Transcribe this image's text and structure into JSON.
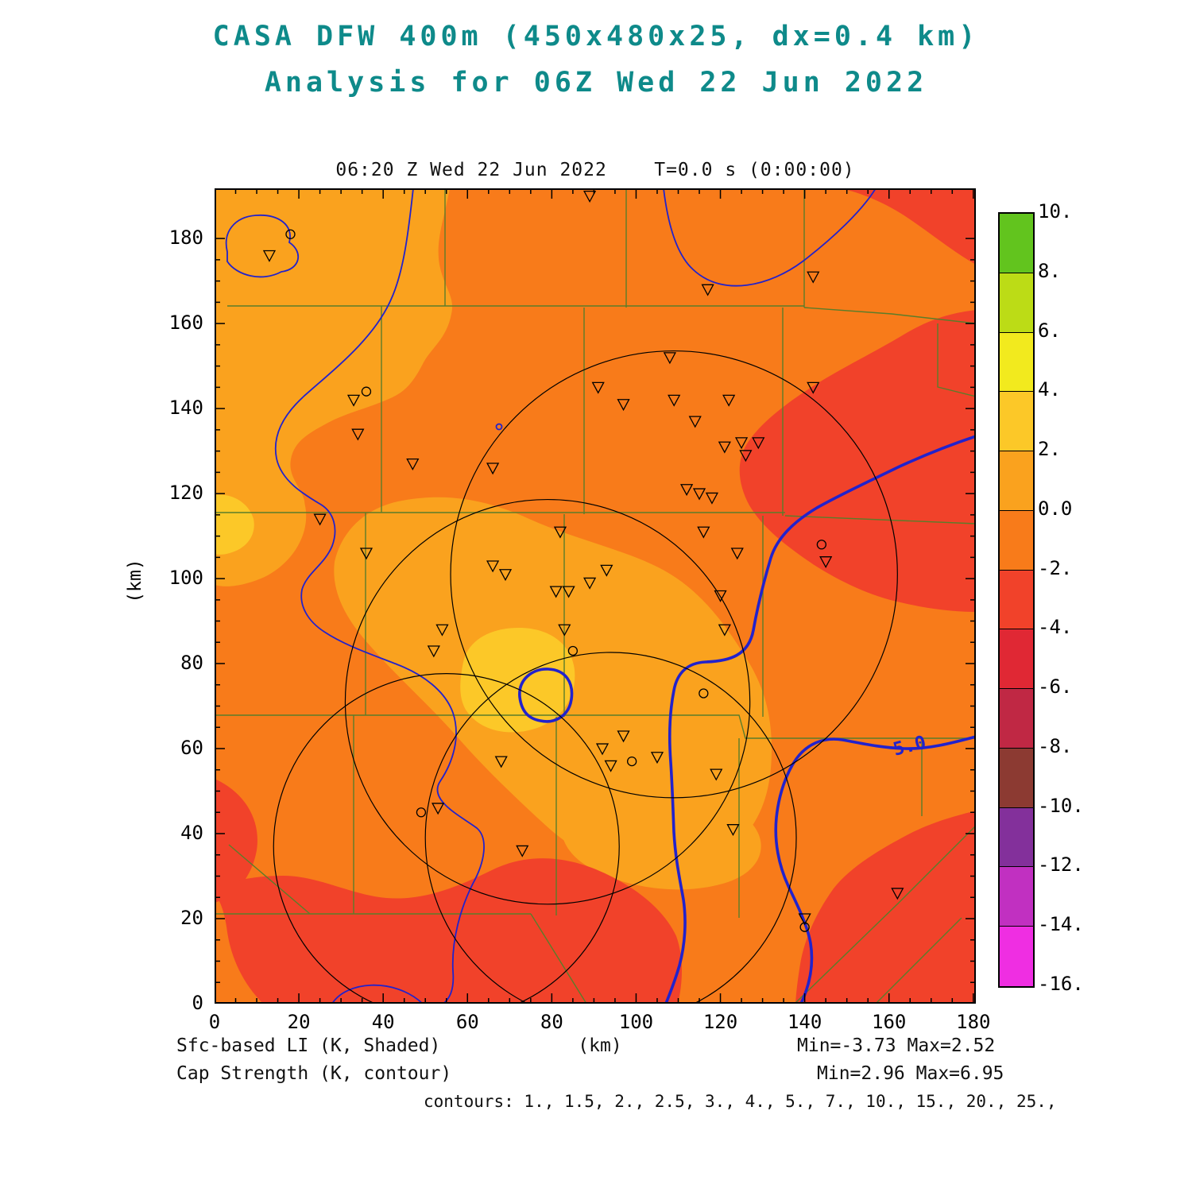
{
  "title": {
    "line1": "CASA DFW 400m (450x480x25, dx=0.4 km)",
    "line2": "Analysis for 06Z Wed 22 Jun 2022"
  },
  "plot_header": "06:20 Z Wed 22 Jun 2022    T=0.0 s (0:00:00)",
  "axes": {
    "x_label": "(km)",
    "y_label": "(km)",
    "x_ticks": [
      0,
      20,
      40,
      60,
      80,
      100,
      120,
      140,
      160,
      180
    ],
    "y_ticks": [
      0,
      20,
      40,
      60,
      80,
      100,
      120,
      140,
      160,
      180
    ],
    "x_range_km": [
      0,
      180.6
    ],
    "y_range_km": [
      0,
      191.8
    ],
    "minor_tick_km": 5
  },
  "colorbar": {
    "levels": [
      "10.",
      "8.",
      "6.",
      "4.",
      "2.",
      "0.0",
      "-2.",
      "-4.",
      "-6.",
      "-8.",
      "-10.",
      "-12.",
      "-14.",
      "-16."
    ],
    "colors": [
      "#62c41e",
      "#bcdc16",
      "#f2ea1e",
      "#fcc828",
      "#faa21e",
      "#f87b1a",
      "#f1422a",
      "#e02834",
      "#c02844",
      "#8c3a32",
      "#83309b",
      "#c130c1",
      "#ef2ee2"
    ]
  },
  "contour_label": "5.0",
  "footer": {
    "shaded_label": "Sfc-based LI (K, Shaded)",
    "contour_label": "Cap Strength (K, contour)",
    "x_units_label": "(km)",
    "shaded_minmax": "Min=-3.73 Max=2.52",
    "contour_minmax": "Min=2.96 Max=6.95",
    "contours_line": "contours: 1., 1.5, 2., 2.5, 3., 4., 5., 7., 10., 15., 20., 25.,"
  },
  "colors": {
    "title": "#0e8a8a",
    "county_lines": "#5a7d2a",
    "cap_contours": "#2222cc",
    "range_rings": "#000000",
    "frame": "#000000"
  },
  "chart_data": {
    "type": "heatmap",
    "title": "CASA DFW 400m (450x480x25, dx=0.4 km)",
    "subtitle": "Analysis for 06Z Wed 22 Jun 2022",
    "valid_time": "06:20 Z Wed 22 Jun 2022, T=0.0 s (0:00:00)",
    "xlabel": "(km)",
    "ylabel": "(km)",
    "xlim": [
      0,
      180
    ],
    "ylim": [
      0,
      190
    ],
    "grid": false,
    "shaded_field": {
      "name": "Sfc-based LI (K, Shaded)",
      "min": -3.73,
      "max": 2.52,
      "scale_levels_K": [
        10,
        8,
        6,
        4,
        2,
        0,
        -2,
        -4,
        -6,
        -8,
        -10,
        -12,
        -14,
        -16
      ],
      "bands_present_K": [
        [
          2,
          4
        ],
        [
          0,
          2
        ],
        [
          -2,
          0
        ],
        [
          -4,
          -2
        ]
      ],
      "band_descriptions": [
        {
          "band_K": [
            2,
            4
          ],
          "where": "small yellow maximum near (65-85 km, 70-80 km) and a tiny patch on the west edge near y=87 km"
        },
        {
          "band_K": [
            0,
            2
          ],
          "where": "broad light-orange area over the northwest quadrant and central counties"
        },
        {
          "band_K": [
            -2,
            0
          ],
          "where": "background orange over most of the remaining domain"
        },
        {
          "band_K": [
            -4,
            -2
          ],
          "where": "red areas: northeast corner, east-central lobe, southeast corner, and a band across the south"
        }
      ]
    },
    "contour_field": {
      "name": "Cap Strength (K, contour)",
      "min": 2.96,
      "max": 6.95,
      "contour_levels": [
        1,
        1.5,
        2,
        2.5,
        3,
        4,
        5,
        7,
        10,
        15,
        20,
        25
      ],
      "labeled_contour": 5.0
    },
    "radar_range_rings_km": [
      {
        "center": [
          109,
          101
        ],
        "radius": 53
      },
      {
        "center": [
          79,
          71
        ],
        "radius": 48
      },
      {
        "center": [
          55,
          37
        ],
        "radius": 41
      },
      {
        "center": [
          94,
          39
        ],
        "radius": 44
      }
    ],
    "station_triangles_km": [
      [
        89,
        190
      ],
      [
        13,
        176
      ],
      [
        33,
        142
      ],
      [
        34,
        134
      ],
      [
        47,
        127
      ],
      [
        66,
        126
      ],
      [
        91,
        145
      ],
      [
        97,
        141
      ],
      [
        108,
        152
      ],
      [
        109,
        142
      ],
      [
        114,
        137
      ],
      [
        117,
        168
      ],
      [
        122,
        142
      ],
      [
        121,
        131
      ],
      [
        125,
        132
      ],
      [
        126,
        129
      ],
      [
        129,
        132
      ],
      [
        142,
        171
      ],
      [
        142,
        145
      ],
      [
        112,
        121
      ],
      [
        115,
        120
      ],
      [
        118,
        119
      ],
      [
        25,
        114
      ],
      [
        36,
        106
      ],
      [
        66,
        103
      ],
      [
        69,
        101
      ],
      [
        82,
        111
      ],
      [
        81,
        97
      ],
      [
        84,
        97
      ],
      [
        89,
        99
      ],
      [
        93,
        102
      ],
      [
        116,
        111
      ],
      [
        120,
        96
      ],
      [
        124,
        106
      ],
      [
        145,
        104
      ],
      [
        83,
        88
      ],
      [
        121,
        88
      ],
      [
        54,
        88
      ],
      [
        52,
        83
      ],
      [
        97,
        63
      ],
      [
        92,
        60
      ],
      [
        94,
        56
      ],
      [
        105,
        58
      ],
      [
        119,
        54
      ],
      [
        123,
        41
      ],
      [
        68,
        57
      ],
      [
        53,
        46
      ],
      [
        73,
        36
      ],
      [
        162,
        26
      ],
      [
        140,
        20
      ]
    ],
    "station_circles_km": [
      [
        18,
        181
      ],
      [
        36,
        144
      ],
      [
        144,
        108
      ],
      [
        85,
        83
      ],
      [
        99,
        57
      ],
      [
        116,
        73
      ],
      [
        49,
        45
      ],
      [
        140,
        18
      ]
    ]
  }
}
